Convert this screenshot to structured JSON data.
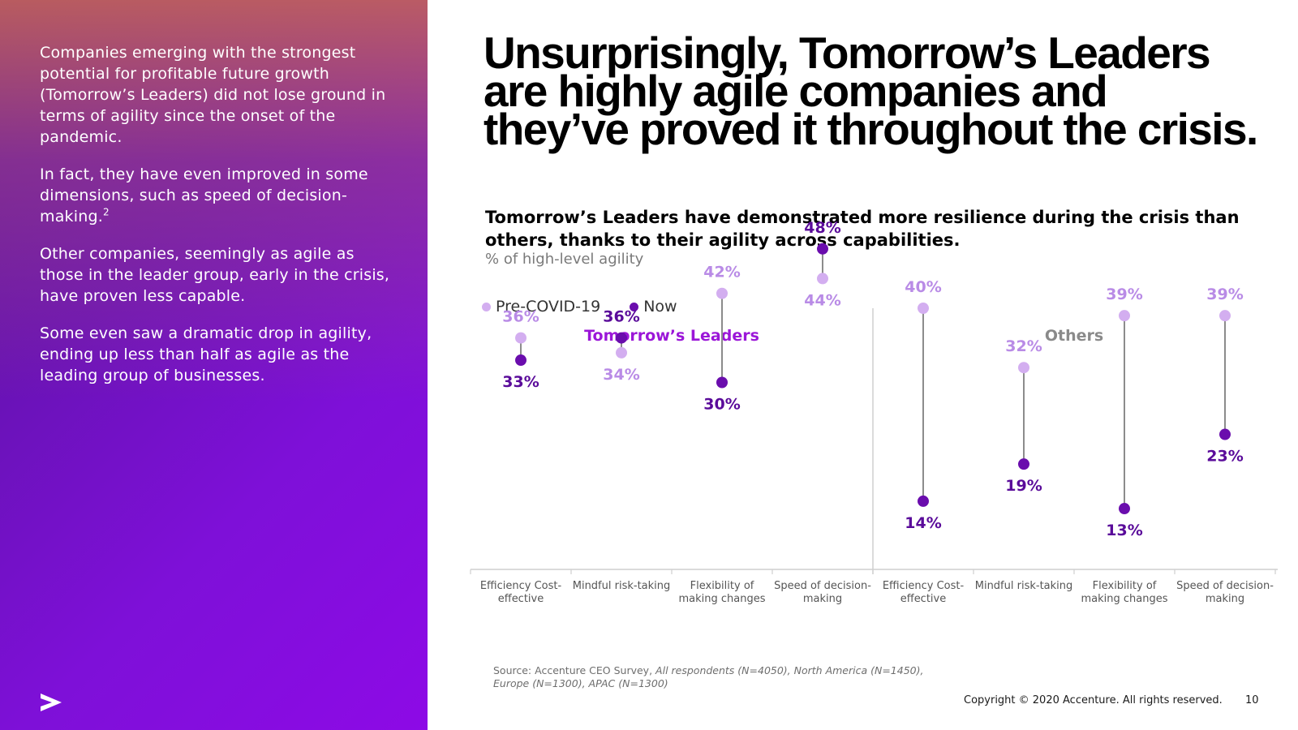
{
  "left_panel": {
    "paragraph_1": "Companies emerging with the strongest potential for profitable future growth (Tomorrow’s Leaders) did not lose ground in terms of agility since the onset of the pandemic.",
    "paragraph_2": "In fact, they have even improved in some dimensions, such as speed of decision-making.",
    "paragraph_2_footnote": "2",
    "paragraph_3": "Other companies, seemingly as agile as those in the leader group, early in the crisis, have proven less capable.",
    "paragraph_4": "Some even saw a dramatic drop in agility, ending up less than half as agile as the leading group of businesses.",
    "logo": "accenture-arrow-logo"
  },
  "headline": "Unsurprisingly, Tomorrow’s Leaders are highly agile companies and they’ve proved it throughout the crisis.",
  "subheadline": "Tomorrow’s Leaders have demonstrated more resilience during the crisis than others, thanks to their agility across capabilities.",
  "unit_label": "% of high-level agility",
  "legend": {
    "pre": "Pre-COVID-19",
    "now": "Now"
  },
  "colors": {
    "pre": "#d3aef0",
    "pre_label": "#b98be6",
    "now": "#6a0dad",
    "now_label": "#5a0b9a",
    "leaders_title": "#9b16d8",
    "others_title": "#8a8a8a",
    "connector": "#8c8c8c",
    "axis": "#cfcfcf"
  },
  "chart_data": {
    "type": "dot-plot",
    "unit": "%",
    "categories": [
      "Efficiency Cost-effective",
      "Mindful risk-taking",
      "Flexibility of making changes",
      "Speed of decision-making"
    ],
    "groups": [
      {
        "name": "Tomorrow’s Leaders",
        "series": [
          {
            "name": "Pre-COVID-19",
            "values": [
              36,
              34,
              42,
              44
            ]
          },
          {
            "name": "Now",
            "values": [
              33,
              36,
              30,
              48
            ]
          }
        ]
      },
      {
        "name": "Others",
        "series": [
          {
            "name": "Pre-COVID-19",
            "values": [
              40,
              32,
              39,
              39
            ]
          },
          {
            "name": "Now",
            "values": [
              14,
              19,
              13,
              23
            ]
          }
        ]
      }
    ],
    "tick_labels": [
      [
        "Efficiency Cost-",
        "effective"
      ],
      [
        "Mindful risk-taking"
      ],
      [
        "Flexibility of",
        "making changes"
      ],
      [
        "Speed of decision-",
        "making"
      ]
    ]
  },
  "footer": {
    "source": "Source: Accenture CEO Survey,",
    "source_italic": "All respondents (N=4050), North America (N=1450), Europe (N=1300), APAC (N=1300)",
    "copyright": "Copyright © 2020 Accenture. All rights reserved.",
    "page_number": "10"
  }
}
